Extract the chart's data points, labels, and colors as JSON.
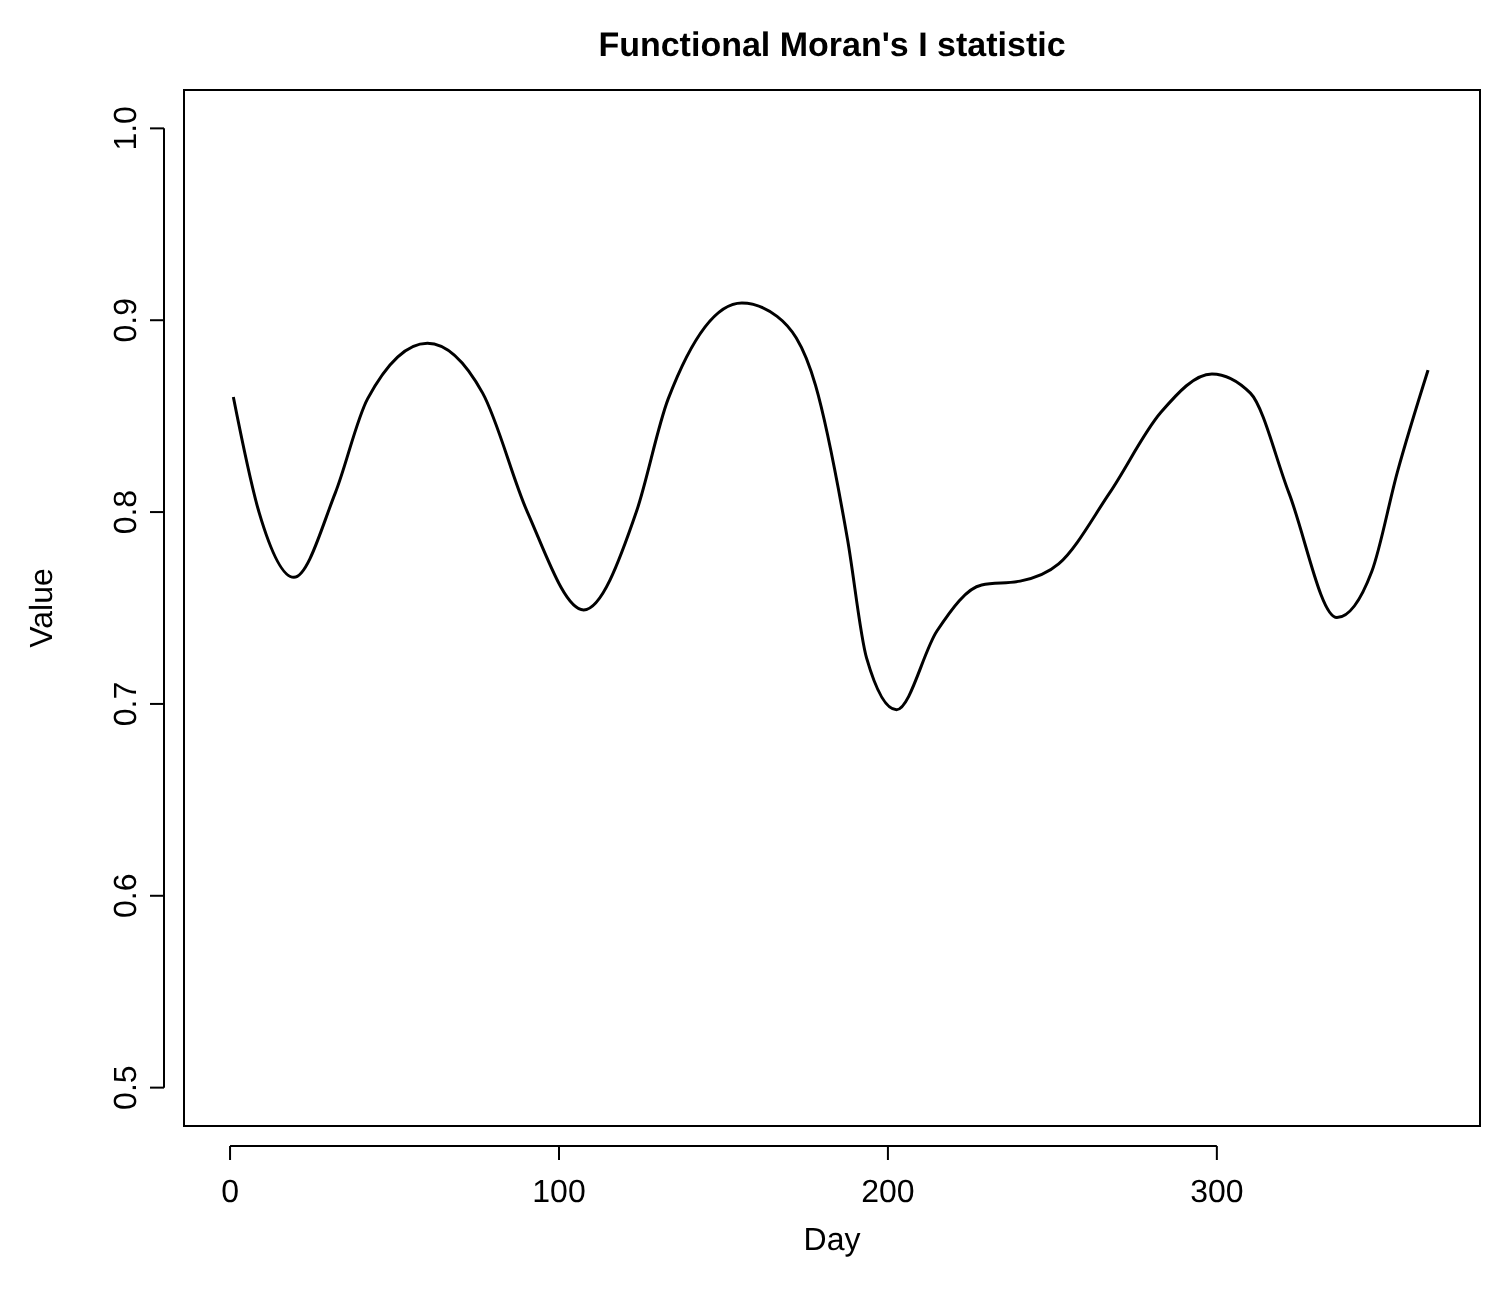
{
  "chart_data": {
    "type": "line",
    "title": "Functional Moran's I statistic",
    "xlabel": "Day",
    "ylabel": "Value",
    "x": [
      1,
      8.8,
      19.4,
      32,
      41.8,
      60,
      76.8,
      90.4,
      107.5,
      123.5,
      133.2,
      155.6,
      166.3,
      178,
      187.7,
      193.5,
      202.6,
      214.9,
      228.5,
      240.2,
      251.9,
      267.4,
      283,
      298.5,
      310.2,
      321.9,
      336.5,
      347.1,
      354.9,
      364.2
    ],
    "series": [
      {
        "color": "#000000",
        "values": [
          0.86,
          0.8,
          0.766,
          0.81,
          0.859,
          0.888,
          0.862,
          0.8,
          0.749,
          0.8,
          0.859,
          0.909,
          0.902,
          0.866,
          0.786,
          0.724,
          0.697,
          0.738,
          0.762,
          0.764,
          0.773,
          0.81,
          0.852,
          0.872,
          0.862,
          0.81,
          0.745,
          0.769,
          0.821,
          0.874
        ]
      }
    ],
    "xlim": [
      -14,
      380
    ],
    "ylim": [
      0.48,
      1.02
    ],
    "xticks": [
      0,
      100,
      200,
      300
    ],
    "yticks": [
      {
        "value": 0.5,
        "label": "0.5"
      },
      {
        "value": 0.6,
        "label": "0.6"
      },
      {
        "value": 0.7,
        "label": "0.7"
      },
      {
        "value": 0.8,
        "label": "0.8"
      },
      {
        "value": 0.9,
        "label": "0.9"
      },
      {
        "value": 1,
        "label": "1.0"
      }
    ],
    "grid": false,
    "marker": "none",
    "line_style": "solid"
  }
}
